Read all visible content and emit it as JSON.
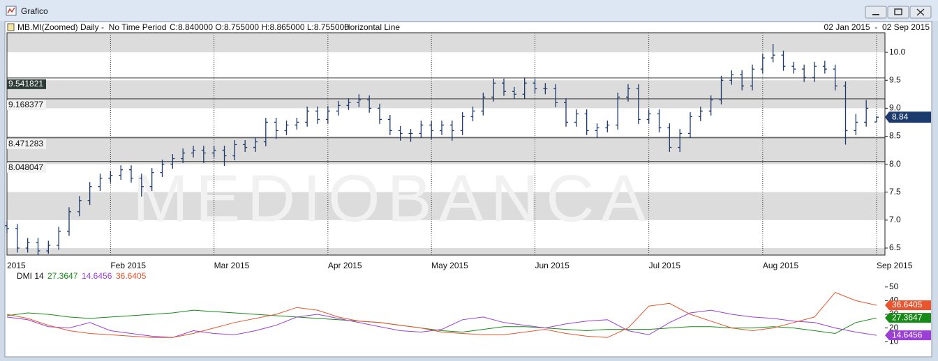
{
  "window": {
    "title": "Grafico"
  },
  "chart_data": [
    {
      "type": "ohlc",
      "title": "MB.MI(Zoomed) Daily -  No Time Period",
      "quote": "C:8.840000 O:8.755000 H:8.865000 L:8.755000",
      "tool": "Horizontal Line",
      "date_range": "02 Jan 2015  -  02 Sep 2015",
      "watermark": "MEDIOBANCA",
      "color": "#1c3a6b",
      "categories": [
        "2015",
        null,
        null,
        null,
        null,
        null,
        null,
        null,
        null,
        null,
        "Feb 2015",
        null,
        null,
        null,
        null,
        null,
        null,
        null,
        null,
        null,
        "Mar 2015",
        null,
        null,
        null,
        null,
        null,
        null,
        null,
        null,
        null,
        null,
        "Apr 2015",
        null,
        null,
        null,
        null,
        null,
        null,
        null,
        null,
        null,
        "May 2015",
        null,
        null,
        null,
        null,
        null,
        null,
        null,
        null,
        null,
        "Jun 2015",
        null,
        null,
        null,
        null,
        null,
        null,
        null,
        null,
        null,
        null,
        "Jul 2015",
        null,
        null,
        null,
        null,
        null,
        null,
        null,
        null,
        null,
        null,
        "Aug 2015",
        null,
        null,
        null,
        null,
        null,
        null,
        null,
        null,
        null,
        null,
        "Sep 2015"
      ],
      "open": [
        6.9,
        6.85,
        6.5,
        6.6,
        6.45,
        6.55,
        6.8,
        7.15,
        7.35,
        7.6,
        7.75,
        7.8,
        7.9,
        7.75,
        7.6,
        7.85,
        8.0,
        8.1,
        8.2,
        8.25,
        8.2,
        8.25,
        8.15,
        8.35,
        8.3,
        8.4,
        8.75,
        8.6,
        8.7,
        8.75,
        8.95,
        8.8,
        8.95,
        9.05,
        9.1,
        9.15,
        9.0,
        8.8,
        8.6,
        8.55,
        8.55,
        8.7,
        8.6,
        8.7,
        8.6,
        8.85,
        8.95,
        9.2,
        9.45,
        9.3,
        9.25,
        9.45,
        9.35,
        9.35,
        9.1,
        8.75,
        8.9,
        8.6,
        8.65,
        8.7,
        9.2,
        9.35,
        8.8,
        8.9,
        8.65,
        8.3,
        8.55,
        8.85,
        8.95,
        9.15,
        9.5,
        9.6,
        9.4,
        9.7,
        9.9,
        9.95,
        9.75,
        9.7,
        9.55,
        9.75,
        9.7,
        9.4,
        8.6,
        8.75,
        8.755
      ],
      "high": [
        6.98,
        6.93,
        6.68,
        6.68,
        6.63,
        6.88,
        7.23,
        7.43,
        7.68,
        7.83,
        7.88,
        7.98,
        7.98,
        7.83,
        7.93,
        8.08,
        8.18,
        8.28,
        8.33,
        8.33,
        8.33,
        8.33,
        8.43,
        8.43,
        8.48,
        8.83,
        8.83,
        8.78,
        8.83,
        9.03,
        9.03,
        9.03,
        9.13,
        9.18,
        9.25,
        9.23,
        9.08,
        8.88,
        8.68,
        8.63,
        8.78,
        8.78,
        8.78,
        8.78,
        8.93,
        9.03,
        9.28,
        9.53,
        9.53,
        9.38,
        9.55,
        9.53,
        9.45,
        9.43,
        9.18,
        8.98,
        8.98,
        8.73,
        8.78,
        9.28,
        9.43,
        9.43,
        8.98,
        8.98,
        8.73,
        8.63,
        8.93,
        9.03,
        9.23,
        9.58,
        9.68,
        9.68,
        9.78,
        9.98,
        10.15,
        10.03,
        9.83,
        9.78,
        9.83,
        9.85,
        9.78,
        9.48,
        8.9,
        9.15,
        8.865
      ],
      "low": [
        6.77,
        6.42,
        6.42,
        6.37,
        6.4,
        6.47,
        6.72,
        7.07,
        7.27,
        7.52,
        7.67,
        7.72,
        7.67,
        7.42,
        7.52,
        7.77,
        7.92,
        8.02,
        8.12,
        8.02,
        8.12,
        7.97,
        8.07,
        8.22,
        8.22,
        8.32,
        8.45,
        8.52,
        8.62,
        8.67,
        8.72,
        8.72,
        8.87,
        8.97,
        9.02,
        8.92,
        8.72,
        8.52,
        8.42,
        8.4,
        8.47,
        8.45,
        8.52,
        8.42,
        8.52,
        8.77,
        8.87,
        9.12,
        9.22,
        9.17,
        9.17,
        9.27,
        9.25,
        9.02,
        8.67,
        8.67,
        8.52,
        8.47,
        8.57,
        8.62,
        9.12,
        8.72,
        8.72,
        8.57,
        8.22,
        8.22,
        8.47,
        8.77,
        8.87,
        9.07,
        9.42,
        9.32,
        9.32,
        9.62,
        9.82,
        9.67,
        9.62,
        9.47,
        9.47,
        9.62,
        9.32,
        8.35,
        8.52,
        8.67,
        8.755
      ],
      "close": [
        6.85,
        6.5,
        6.6,
        6.45,
        6.55,
        6.8,
        7.15,
        7.35,
        7.6,
        7.75,
        7.8,
        7.9,
        7.75,
        7.6,
        7.85,
        8.0,
        8.1,
        8.2,
        8.25,
        8.2,
        8.25,
        8.15,
        8.35,
        8.3,
        8.4,
        8.75,
        8.6,
        8.7,
        8.75,
        8.95,
        8.8,
        8.95,
        9.05,
        9.1,
        9.15,
        9.0,
        8.8,
        8.6,
        8.55,
        8.55,
        8.7,
        8.6,
        8.7,
        8.6,
        8.85,
        8.95,
        9.2,
        9.45,
        9.3,
        9.25,
        9.45,
        9.35,
        9.35,
        9.1,
        8.75,
        8.9,
        8.6,
        8.65,
        8.7,
        9.2,
        9.35,
        8.8,
        8.9,
        8.65,
        8.3,
        8.55,
        8.85,
        8.95,
        9.15,
        9.5,
        9.6,
        9.4,
        9.7,
        9.9,
        9.95,
        9.75,
        9.7,
        9.55,
        9.75,
        9.7,
        9.4,
        8.6,
        8.75,
        9.0,
        8.84
      ],
      "ylim": [
        6.375,
        10.35
      ],
      "yticks": [
        6.5,
        {
          "value": 7,
          "label": "7.0"
        },
        7.5,
        {
          "value": 8,
          "label": "8.0"
        },
        8.5,
        {
          "value": 9,
          "label": "9.0"
        },
        9.5,
        {
          "value": 10,
          "label": "10.0"
        }
      ],
      "hlines": [
        9.541821,
        9.168377,
        8.471283,
        8.048047
      ],
      "grid": true
    },
    {
      "type": "line",
      "title": "DMI 14",
      "series": [
        {
          "color": "#178a17",
          "values": [
            29,
            31,
            30,
            28,
            27,
            28,
            29,
            30,
            31,
            33,
            32,
            31,
            30,
            29,
            28,
            27,
            26,
            25,
            24,
            22,
            20,
            18,
            17,
            19,
            21,
            21,
            20,
            19,
            18,
            19,
            19,
            19,
            20,
            21,
            21,
            20,
            20,
            21,
            20,
            18,
            16,
            24,
            27.3647
          ]
        },
        {
          "color": "#9b3fd6",
          "values": [
            28,
            26,
            21,
            20,
            24,
            18,
            16,
            14,
            13,
            18,
            16,
            15,
            18,
            22,
            28,
            30,
            27,
            24,
            21,
            18,
            17,
            19,
            26,
            28,
            24,
            22,
            20,
            23,
            25,
            26,
            18,
            15,
            24,
            31,
            33,
            30,
            28,
            27,
            25,
            24,
            20,
            17,
            14.6456
          ]
        },
        {
          "color": "#e8552e",
          "values": [
            30,
            27,
            22,
            18,
            16,
            15,
            14,
            13,
            13,
            16,
            20,
            24,
            27,
            30,
            35,
            33,
            28,
            25,
            24,
            22,
            20,
            17,
            16,
            15,
            15,
            17,
            19,
            16,
            14,
            13,
            20,
            36,
            38,
            30,
            25,
            20,
            18,
            20,
            24,
            28,
            46,
            40,
            36.6405
          ]
        }
      ],
      "ylim": [
        4,
        56
      ],
      "yticks": [
        10,
        20,
        30,
        40,
        50
      ]
    }
  ]
}
